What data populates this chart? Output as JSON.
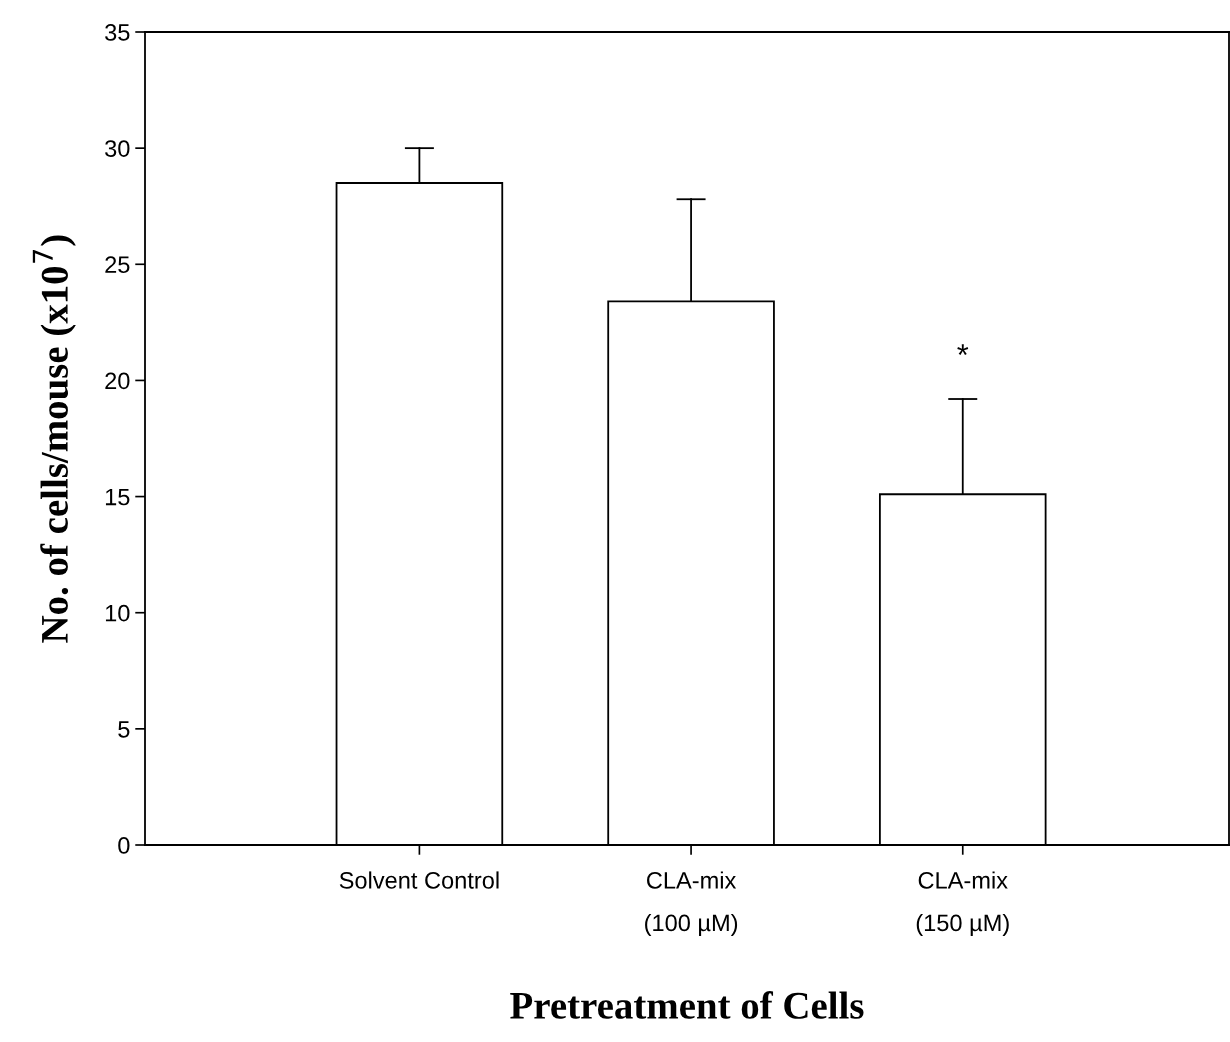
{
  "chart_data": {
    "type": "bar",
    "categories": [
      "Solvent Control",
      "CLA-mix\n(100 µM)",
      "CLA-mix\n(150 µM)"
    ],
    "values": [
      28.5,
      23.4,
      15.1
    ],
    "errors": [
      [
        28.5,
        30.0
      ],
      [
        23.4,
        27.8
      ],
      [
        15.1,
        19.2
      ]
    ],
    "color": "#ffffff",
    "xlabel": "Pretreatment of Cells",
    "ylabel": "No. of cells/mouse (x10$^{7}$)",
    "ylim": [
      0,
      35
    ],
    "yticks": [
      0,
      5,
      10,
      15,
      20,
      25,
      30,
      35
    ],
    "annotations": [
      "*"
    ],
    "grid": false,
    "legend": false
  }
}
